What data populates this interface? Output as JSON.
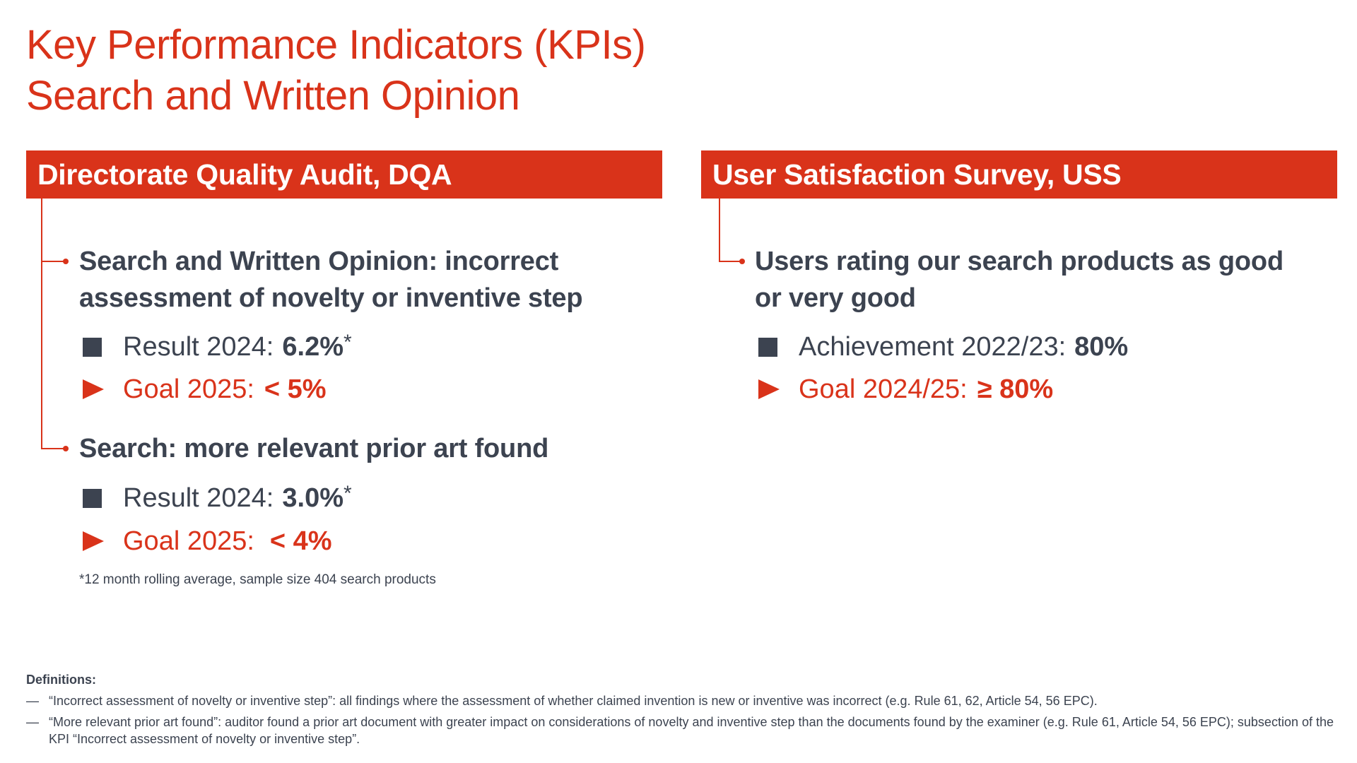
{
  "title": {
    "line1": "Key Performance Indicators (KPIs)",
    "line2": "Search and Written Opinion"
  },
  "dqa": {
    "header": "Directorate Quality Audit, DQA",
    "kpis": [
      {
        "heading_line1": "Search and Written Opinion: incorrect",
        "heading_line2": "assessment of novelty or inventive step",
        "result_label": "Result 2024:",
        "result_value": "6.2%",
        "result_star": "*",
        "goal_label": "Goal 2025:",
        "goal_value": "< 5%"
      },
      {
        "heading_line1": "Search: more relevant prior art found",
        "result_label": "Result 2024:",
        "result_value": "3.0%",
        "result_star": "*",
        "goal_label": "Goal 2025:",
        "goal_value": "< 4%"
      }
    ],
    "footnote": "*12 month rolling average, sample size 404 search products"
  },
  "uss": {
    "header": "User Satisfaction Survey, USS",
    "kpi": {
      "heading_line1": "Users rating our search products as good",
      "heading_line2": "or very good",
      "achievement_label": "Achievement 2022/23:",
      "achievement_value": "80%",
      "goal_label": "Goal 2024/25:",
      "goal_value": "≥ 80%"
    }
  },
  "definitions": {
    "title": "Definitions:",
    "dash": "—",
    "items": [
      "“Incorrect assessment of novelty or inventive step”: all findings where the assessment of whether claimed invention is new or inventive was incorrect (e.g. Rule 61, 62, Article 54, 56 EPC).",
      "“More relevant prior art found”: auditor found a prior art document with greater impact on considerations of novelty and inventive step than the documents found by the examiner (e.g. Rule 61, Article 54, 56 EPC); subsection of the KPI “Incorrect assessment of novelty or inventive step”."
    ]
  },
  "colors": {
    "accent": "#d9331a",
    "text": "#3c4350"
  }
}
